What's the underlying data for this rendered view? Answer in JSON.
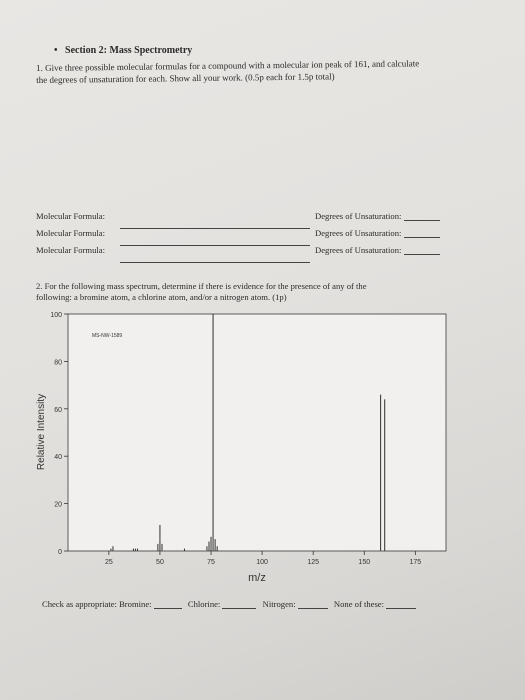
{
  "section_title": "Section 2: Mass Spectrometry",
  "q1": {
    "line1": "1. Give three possible molecular formulas for a compound with a molecular ion peak of 161, and calculate",
    "line2": "the degrees of unsaturation for each. Show all your work. (0.5p each for 1.5p total)"
  },
  "rows": [
    {
      "left": "Molecular Formula:",
      "right": "Degrees of Unsaturation:"
    },
    {
      "left": "Molecular Formula:",
      "right": "Degrees of Unsaturation:"
    },
    {
      "left": "Molecular Formula:",
      "right": "Degrees of Unsaturation:"
    }
  ],
  "q2": {
    "line1": "2. For the following mass spectrum, determine if there is evidence for the presence of any of the",
    "line2": "following: a bromine atom, a chlorine atom, and/or a nitrogen atom. (1p)"
  },
  "chart_data": {
    "type": "bar",
    "title": "",
    "annotation": "MS-NW-1589",
    "xlabel": "m/z",
    "ylabel": "Relative Intensity",
    "xlim": [
      5,
      190
    ],
    "ylim": [
      0,
      100
    ],
    "x_ticks": [
      "25",
      "50",
      "75",
      "100",
      "125",
      "150",
      "175"
    ],
    "y_ticks": [
      "0",
      "20",
      "40",
      "60",
      "80",
      "100"
    ],
    "x": [
      26,
      27,
      37,
      38,
      39,
      49,
      50,
      51,
      62,
      73,
      74,
      75,
      76,
      77,
      78,
      158,
      160
    ],
    "values": [
      1,
      2,
      1,
      1,
      1,
      3,
      11,
      3,
      1,
      2,
      4,
      6,
      100,
      5,
      2,
      66,
      64
    ]
  },
  "footer": {
    "check_label": "Check as appropriate: Bromine:",
    "chlorine": "Chlorine:",
    "nitrogen": "Nitrogen:",
    "none": "None of these:"
  }
}
